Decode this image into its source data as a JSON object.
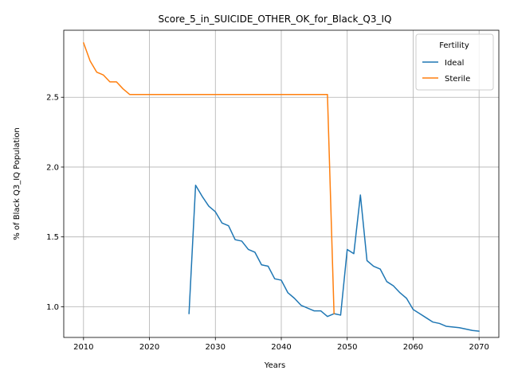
{
  "chart_data": {
    "type": "line",
    "title": "Score_5_in_SUICIDE_OTHER_OK_for_Black_Q3_IQ",
    "xlabel": "Years",
    "ylabel": "% of Black Q3_IQ Population",
    "xlim": [
      2007,
      2073
    ],
    "ylim": [
      0.78,
      2.98
    ],
    "xticks": [
      2010,
      2020,
      2030,
      2040,
      2050,
      2060,
      2070
    ],
    "xtick_labels": [
      "2010",
      "2020",
      "2030",
      "2040",
      "2050",
      "2060",
      "2070"
    ],
    "yticks": [
      1.0,
      1.5,
      2.0,
      2.5
    ],
    "ytick_labels": [
      "1.0",
      "1.5",
      "2.0",
      "2.5"
    ],
    "grid": true,
    "legend": {
      "title": "Fertility",
      "placement": "top-right"
    },
    "series": [
      {
        "name": "Ideal",
        "color": "#1f77b4",
        "x": [
          2026,
          2027,
          2028,
          2029,
          2030,
          2031,
          2032,
          2033,
          2034,
          2035,
          2036,
          2037,
          2038,
          2039,
          2040,
          2041,
          2042,
          2043,
          2044,
          2045,
          2046,
          2047,
          2048,
          2049,
          2050,
          2051,
          2052,
          2053,
          2054,
          2055,
          2056,
          2057,
          2058,
          2059,
          2060,
          2061,
          2062,
          2063,
          2064,
          2065,
          2066,
          2067,
          2068,
          2069,
          2070
        ],
        "y": [
          0.95,
          1.87,
          1.79,
          1.72,
          1.68,
          1.6,
          1.58,
          1.48,
          1.47,
          1.41,
          1.39,
          1.3,
          1.29,
          1.2,
          1.19,
          1.1,
          1.06,
          1.01,
          0.99,
          0.97,
          0.97,
          0.93,
          0.95,
          0.94,
          1.41,
          1.38,
          1.8,
          1.33,
          1.29,
          1.27,
          1.18,
          1.15,
          1.1,
          1.06,
          0.98,
          0.95,
          0.92,
          0.89,
          0.88,
          0.86,
          0.855,
          0.85,
          0.84,
          0.83,
          0.825
        ]
      },
      {
        "name": "Sterile",
        "color": "#ff7f0e",
        "x": [
          2010,
          2011,
          2012,
          2013,
          2014,
          2015,
          2016,
          2017,
          2018,
          2019,
          2020,
          2025,
          2030,
          2035,
          2040,
          2045,
          2046,
          2047,
          2048
        ],
        "y": [
          2.89,
          2.76,
          2.68,
          2.66,
          2.61,
          2.61,
          2.56,
          2.52,
          2.52,
          2.52,
          2.52,
          2.52,
          2.52,
          2.52,
          2.52,
          2.52,
          2.52,
          2.52,
          0.95
        ]
      }
    ]
  }
}
